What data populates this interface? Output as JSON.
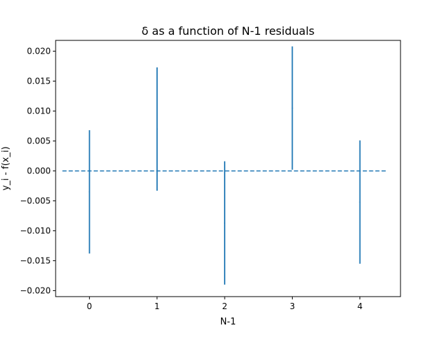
{
  "chart_data": {
    "type": "errorbar",
    "title": "δ as a function of N-1 residuals",
    "xlabel": "N-1",
    "ylabel": "y_i - f(x_i)",
    "xlim": [
      -0.5,
      4.6
    ],
    "ylim": [
      -0.021,
      0.0218
    ],
    "xticks": [
      0,
      1,
      2,
      3,
      4
    ],
    "yticks": [
      -0.02,
      -0.015,
      -0.01,
      -0.005,
      0.0,
      0.005,
      0.01,
      0.015,
      0.02
    ],
    "ytick_labels": [
      "−0.020",
      "−0.015",
      "−0.010",
      "−0.005",
      "0.000",
      "0.005",
      "0.010",
      "0.015",
      "0.020"
    ],
    "xtick_labels": [
      "0",
      "1",
      "2",
      "3",
      "4"
    ],
    "grid": false,
    "series": [
      {
        "x": [
          0,
          1,
          2,
          3,
          4
        ],
        "y": [
          -0.0035,
          0.007,
          -0.0087,
          0.0105,
          -0.0052
        ],
        "yerr": [
          0.0103,
          0.0103,
          0.0103,
          0.0103,
          0.0103
        ],
        "color": "#1f77b4"
      }
    ],
    "reference_line": {
      "y": 0.0,
      "x_range": [
        -0.4,
        4.4
      ],
      "style": "dashed",
      "color": "#1f77b4"
    }
  }
}
